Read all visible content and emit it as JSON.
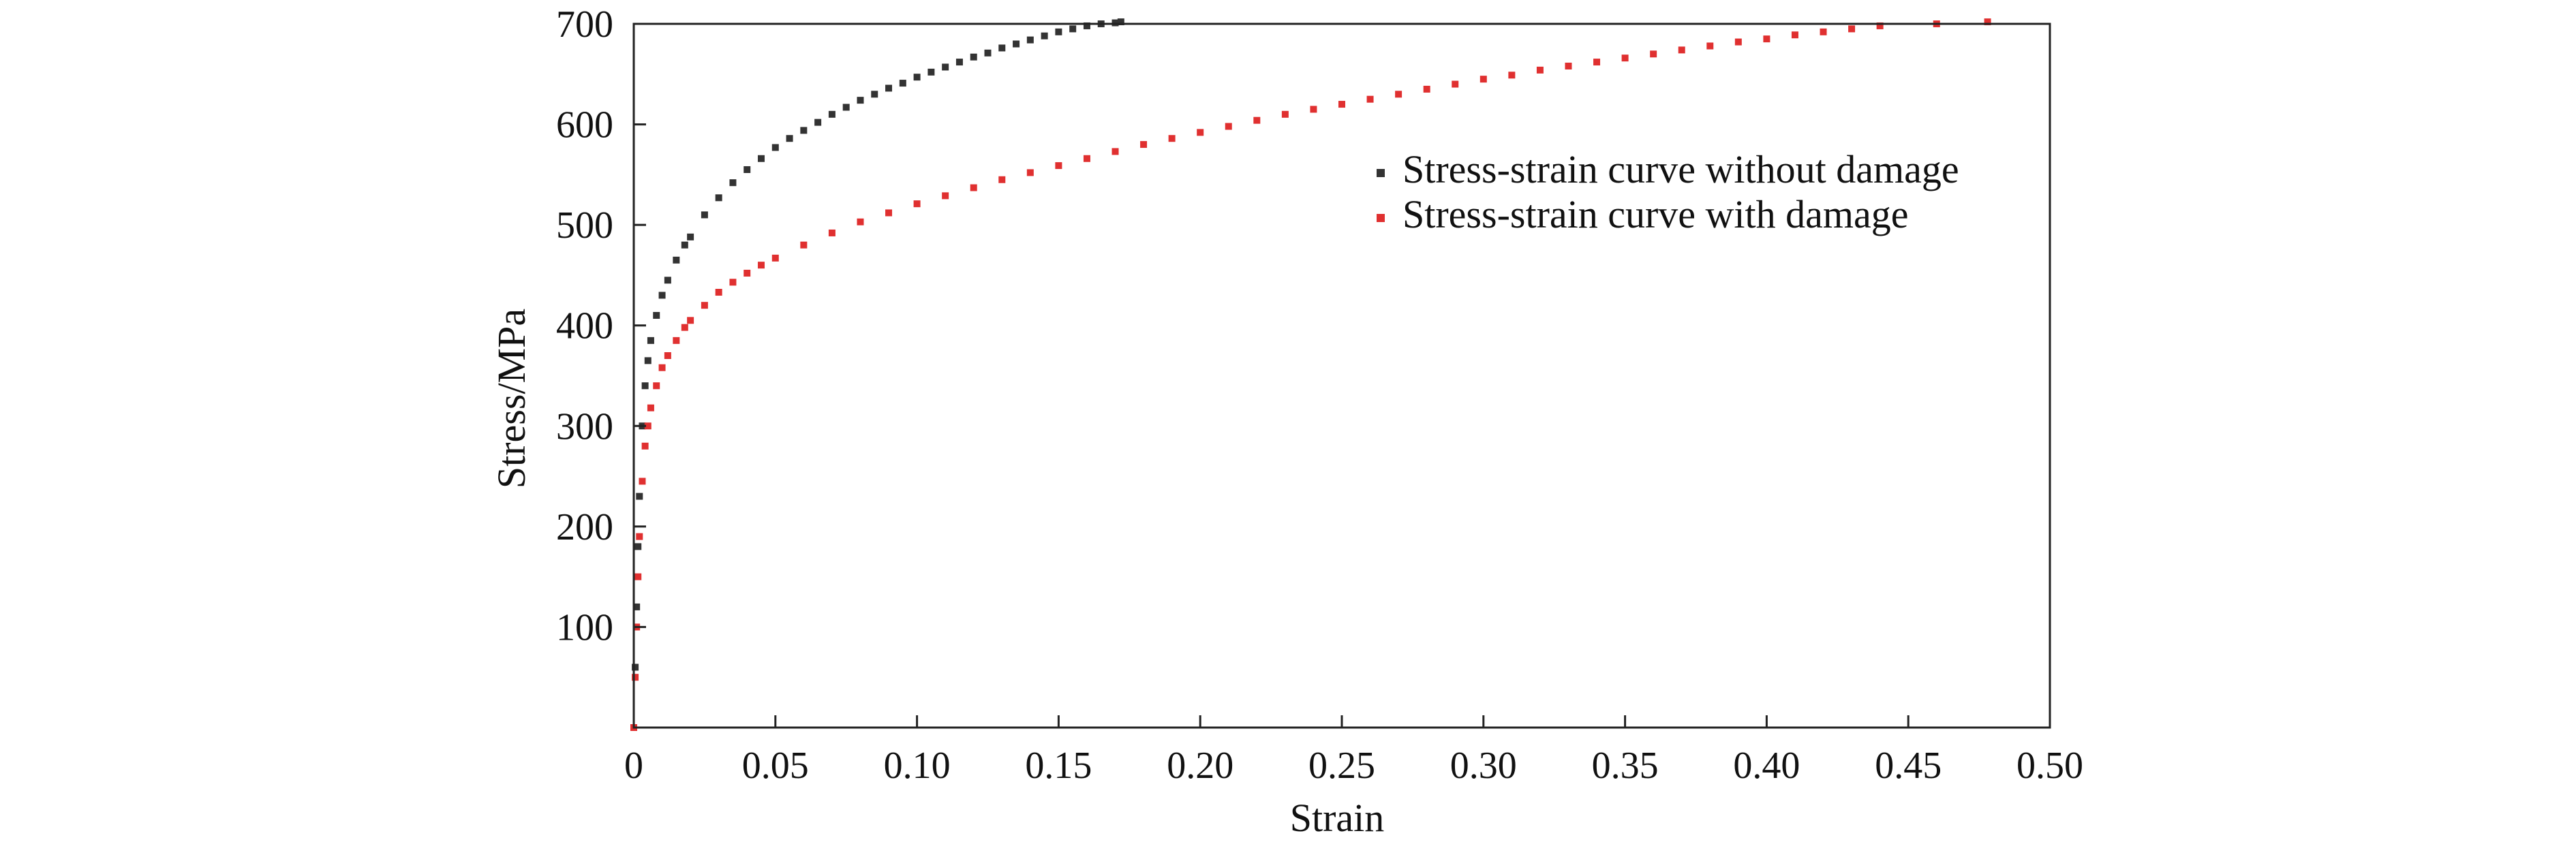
{
  "chart_data": {
    "type": "scatter",
    "title": "",
    "xlabel": "Strain",
    "ylabel": "Stress/MPa",
    "xlim": [
      0,
      0.5
    ],
    "ylim": [
      0,
      700
    ],
    "grid": false,
    "legend_position": "top-right",
    "x_ticks": [
      {
        "value": 0,
        "label": "0"
      },
      {
        "value": 0.05,
        "label": "0.05"
      },
      {
        "value": 0.1,
        "label": "0.10"
      },
      {
        "value": 0.15,
        "label": "0.15"
      },
      {
        "value": 0.2,
        "label": "0.20"
      },
      {
        "value": 0.25,
        "label": "0.25"
      },
      {
        "value": 0.3,
        "label": "0.30"
      },
      {
        "value": 0.35,
        "label": "0.35"
      },
      {
        "value": 0.4,
        "label": "0.40"
      },
      {
        "value": 0.45,
        "label": "0.45"
      },
      {
        "value": 0.5,
        "label": "0.50"
      }
    ],
    "y_ticks": [
      {
        "value": 100,
        "label": "100"
      },
      {
        "value": 200,
        "label": "200"
      },
      {
        "value": 300,
        "label": "300"
      },
      {
        "value": 400,
        "label": "400"
      },
      {
        "value": 500,
        "label": "500"
      },
      {
        "value": 600,
        "label": "600"
      },
      {
        "value": 700,
        "label": "700"
      }
    ],
    "series": [
      {
        "name": "Stress-strain curve without damage",
        "color": "#333333",
        "x": [
          0,
          0.0005,
          0.001,
          0.0015,
          0.002,
          0.003,
          0.004,
          0.005,
          0.006,
          0.008,
          0.01,
          0.012,
          0.015,
          0.018,
          0.02,
          0.025,
          0.03,
          0.035,
          0.04,
          0.045,
          0.05,
          0.055,
          0.06,
          0.065,
          0.07,
          0.075,
          0.08,
          0.085,
          0.09,
          0.095,
          0.1,
          0.105,
          0.11,
          0.115,
          0.12,
          0.125,
          0.13,
          0.135,
          0.14,
          0.145,
          0.15,
          0.155,
          0.16,
          0.165,
          0.17,
          0.172
        ],
        "y": [
          0,
          60,
          120,
          180,
          230,
          300,
          340,
          365,
          385,
          410,
          430,
          445,
          465,
          480,
          488,
          510,
          527,
          542,
          555,
          566,
          577,
          586,
          594,
          602,
          610,
          617,
          624,
          630,
          636,
          641,
          647,
          652,
          657,
          662,
          667,
          671,
          676,
          680,
          684,
          688,
          692,
          695,
          698,
          700,
          701,
          702
        ]
      },
      {
        "name": "Stress-strain curve with damage",
        "color": "#e03030",
        "x": [
          0,
          0.0005,
          0.001,
          0.0015,
          0.002,
          0.003,
          0.004,
          0.005,
          0.006,
          0.008,
          0.01,
          0.012,
          0.015,
          0.018,
          0.02,
          0.025,
          0.03,
          0.035,
          0.04,
          0.045,
          0.05,
          0.06,
          0.07,
          0.08,
          0.09,
          0.1,
          0.11,
          0.12,
          0.13,
          0.14,
          0.15,
          0.16,
          0.17,
          0.18,
          0.19,
          0.2,
          0.21,
          0.22,
          0.23,
          0.24,
          0.25,
          0.26,
          0.27,
          0.28,
          0.29,
          0.3,
          0.31,
          0.32,
          0.33,
          0.34,
          0.35,
          0.36,
          0.37,
          0.38,
          0.39,
          0.4,
          0.41,
          0.42,
          0.43,
          0.44,
          0.46,
          0.478
        ],
        "y": [
          0,
          50,
          100,
          150,
          190,
          245,
          280,
          300,
          318,
          340,
          358,
          370,
          385,
          398,
          405,
          420,
          433,
          443,
          452,
          460,
          467,
          480,
          492,
          503,
          512,
          521,
          529,
          537,
          545,
          552,
          559,
          566,
          573,
          580,
          586,
          592,
          598,
          604,
          610,
          615,
          620,
          625,
          630,
          635,
          640,
          645,
          649,
          654,
          658,
          662,
          666,
          670,
          674,
          678,
          682,
          685,
          689,
          692,
          695,
          698,
          700,
          702
        ]
      }
    ]
  }
}
